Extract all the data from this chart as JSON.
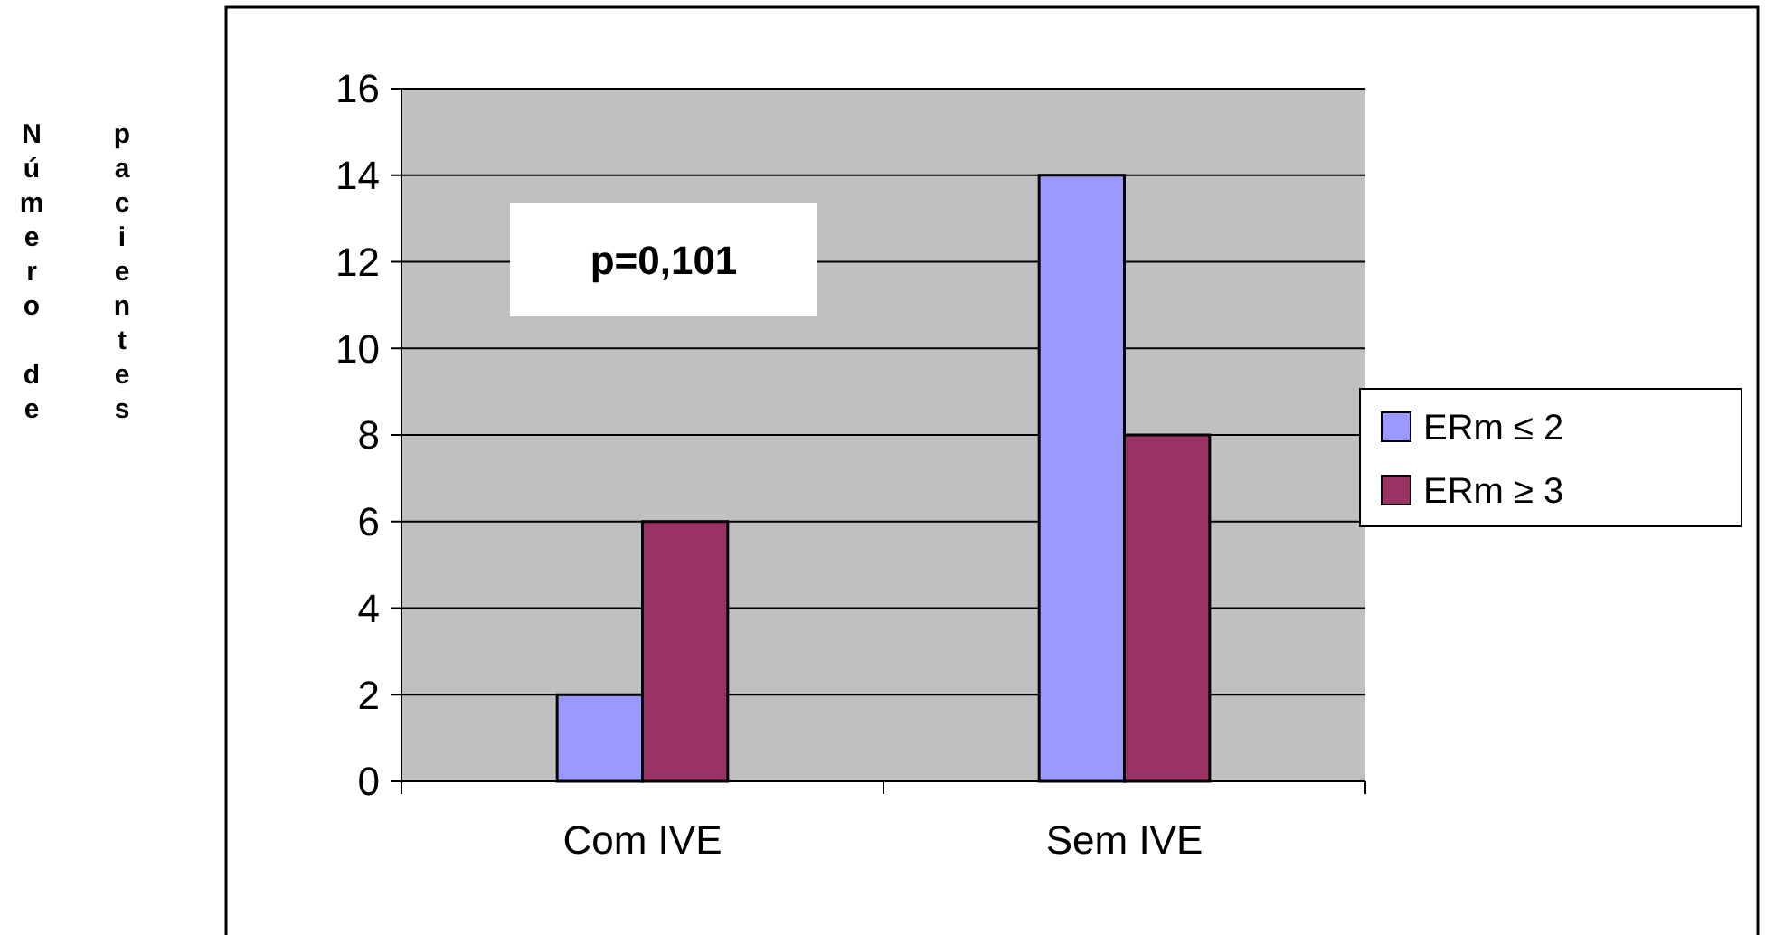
{
  "chart_data": {
    "type": "bar",
    "ylabel": "Número de pacientes",
    "categories": [
      "Com IVE",
      "Sem IVE"
    ],
    "series": [
      {
        "name": "ERm ≤ 2",
        "color": "#9999ff",
        "values": [
          2,
          14
        ]
      },
      {
        "name": "ERm ≥ 3",
        "color": "#993366",
        "values": [
          6,
          8
        ]
      }
    ],
    "ylim": [
      0,
      16
    ],
    "yticks": [
      0,
      2,
      4,
      6,
      8,
      10,
      12,
      14,
      16
    ],
    "grid": "y",
    "legend": "right",
    "annotations": [
      "p=0,101"
    ]
  }
}
